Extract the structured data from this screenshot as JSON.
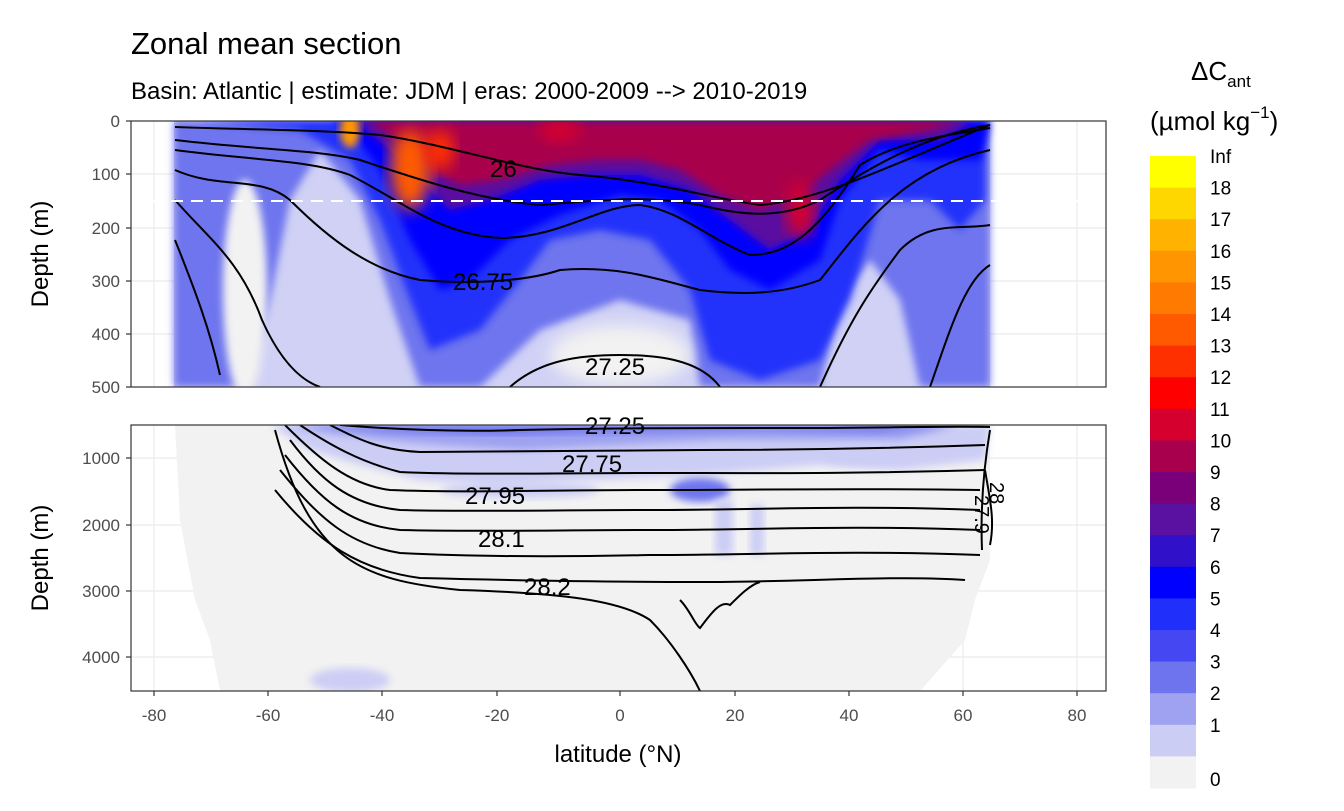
{
  "chart_data": {
    "type": "heatmap",
    "title": "Zonal mean section",
    "subtitle": "Basin: Atlantic | estimate: JDM  | eras: 2000-2009 --> 2010-2019",
    "xlabel": "latitude (°N)",
    "ylabel": "Depth (m)",
    "xlim": [
      -85,
      85
    ],
    "x_ticks": [
      "-80",
      "-60",
      "-40",
      "-20",
      "0",
      "20",
      "40",
      "60",
      "80"
    ],
    "panels": [
      {
        "name": "upper",
        "ylim": [
          500,
          0
        ],
        "y_ticks": [
          "0",
          "100",
          "200",
          "300",
          "400",
          "500"
        ]
      },
      {
        "name": "lower",
        "ylim": [
          4500,
          500
        ],
        "y_ticks": [
          "1000",
          "2000",
          "3000",
          "4000"
        ]
      }
    ],
    "reference_line_depth": 150,
    "legend": {
      "title_main": "ΔC",
      "title_sub": "ant",
      "title_units": "(µmol kg",
      "title_exp": "−1",
      "title_close": ")",
      "labels": [
        "Inf",
        "18",
        "17",
        "16",
        "15",
        "14",
        "13",
        "12",
        "11",
        "10",
        "9",
        "8",
        "7",
        "6",
        "5",
        "4",
        "3",
        "2",
        "1",
        "0"
      ],
      "colors": [
        "#FFFF00",
        "#FFD700",
        "#FFB300",
        "#FF9500",
        "#FF7A00",
        "#FF5A00",
        "#FF3000",
        "#FF0000",
        "#D6002E",
        "#A8004C",
        "#7A007A",
        "#5A10A0",
        "#3010C8",
        "#0000FF",
        "#2030FA",
        "#4548F2",
        "#6E74EE",
        "#9EA2F0",
        "#CCCDF5",
        "#F2F2F2"
      ]
    },
    "contour_labels": [
      "26",
      "26.75",
      "27.25",
      "27.25",
      "27.75",
      "27.95",
      "28.1",
      "28.2",
      "27.9",
      "28"
    ]
  }
}
